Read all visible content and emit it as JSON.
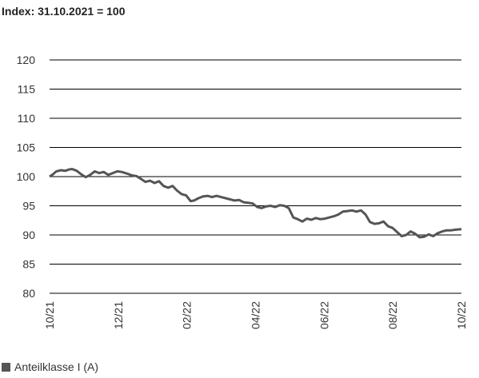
{
  "chart_data": {
    "type": "line",
    "title": "Index: 31.10.2021 = 100",
    "xlabel": "",
    "ylabel": "",
    "ylim": [
      80,
      120
    ],
    "yticks": [
      "120",
      "115",
      "110",
      "105",
      "100",
      "95",
      "90",
      "85",
      "80"
    ],
    "xticks": [
      "10/21",
      "12/21",
      "02/22",
      "04/22",
      "06/22",
      "08/22",
      "10/22"
    ],
    "grid": true,
    "legend_position": "bottom-left",
    "line_color": "#555555",
    "series": [
      {
        "name": "Anteilklasse I (A)",
        "x": [
          "2021-10-31",
          "2021-11-03",
          "2021-11-06",
          "2021-11-10",
          "2021-11-14",
          "2021-11-17",
          "2021-11-20",
          "2021-11-24",
          "2021-11-28",
          "2021-12-02",
          "2021-12-06",
          "2021-12-10",
          "2021-12-14",
          "2021-12-18",
          "2021-12-22",
          "2021-12-26",
          "2021-12-30",
          "2022-01-03",
          "2022-01-08",
          "2022-01-12",
          "2022-01-16",
          "2022-01-20",
          "2022-01-24",
          "2022-01-28",
          "2022-02-01",
          "2022-02-05",
          "2022-02-09",
          "2022-02-13",
          "2022-02-17",
          "2022-02-21",
          "2022-02-25",
          "2022-03-01",
          "2022-03-05",
          "2022-03-08",
          "2022-03-12",
          "2022-03-16",
          "2022-03-20",
          "2022-03-24",
          "2022-03-28",
          "2022-04-01",
          "2022-04-05",
          "2022-04-09",
          "2022-04-13",
          "2022-04-17",
          "2022-04-21",
          "2022-04-25",
          "2022-04-29",
          "2022-05-03",
          "2022-05-07",
          "2022-05-11",
          "2022-05-15",
          "2022-05-19",
          "2022-05-23",
          "2022-05-27",
          "2022-05-31",
          "2022-06-04",
          "2022-06-08",
          "2022-06-12",
          "2022-06-16",
          "2022-06-20",
          "2022-06-24",
          "2022-06-28",
          "2022-07-02",
          "2022-07-06",
          "2022-07-10",
          "2022-07-14",
          "2022-07-18",
          "2022-07-22",
          "2022-07-26",
          "2022-07-30",
          "2022-08-03",
          "2022-08-07",
          "2022-08-11",
          "2022-08-15",
          "2022-08-19",
          "2022-08-23",
          "2022-08-27",
          "2022-08-31",
          "2022-09-04",
          "2022-09-08",
          "2022-09-12",
          "2022-09-16",
          "2022-09-20",
          "2022-09-24",
          "2022-09-28",
          "2022-10-02",
          "2022-10-06",
          "2022-10-10",
          "2022-10-14",
          "2022-10-18",
          "2022-10-22",
          "2022-10-26",
          "2022-10-31"
        ],
        "values": [
          100.0,
          100.4,
          100.9,
          101.1,
          101.0,
          101.2,
          101.3,
          101.0,
          100.4,
          99.9,
          100.3,
          100.9,
          100.6,
          100.8,
          100.3,
          100.6,
          100.9,
          100.8,
          100.5,
          100.2,
          100.1,
          99.6,
          99.1,
          99.3,
          98.9,
          99.2,
          98.4,
          98.1,
          98.4,
          97.6,
          97.0,
          96.8,
          95.8,
          95.9,
          96.3,
          96.6,
          96.7,
          96.5,
          96.7,
          96.5,
          96.3,
          96.1,
          95.9,
          96.0,
          95.6,
          95.5,
          95.4,
          94.8,
          94.6,
          94.9,
          95.0,
          94.8,
          95.1,
          95.0,
          94.6,
          93.0,
          92.7,
          92.3,
          92.8,
          92.6,
          92.9,
          92.7,
          92.8,
          93.0,
          93.2,
          93.5,
          94.0,
          94.1,
          94.2,
          94.0,
          94.2,
          93.5,
          92.2,
          91.9,
          92.0,
          92.3,
          91.5,
          91.2,
          90.5,
          89.8,
          90.0,
          90.6,
          90.2,
          89.6,
          89.7,
          90.1,
          89.8,
          90.3,
          90.6,
          90.8,
          90.8,
          90.9,
          91.0
        ]
      }
    ]
  }
}
